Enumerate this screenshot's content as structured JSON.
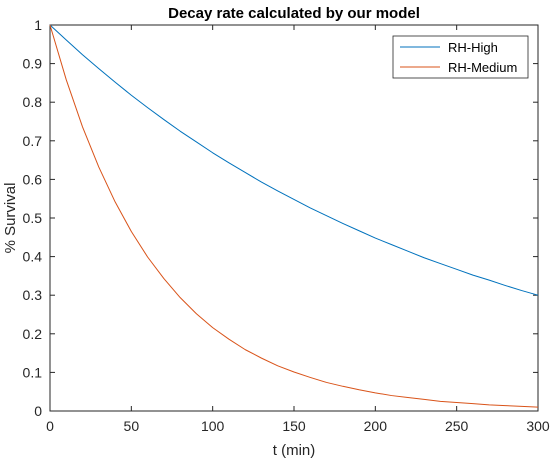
{
  "chart_data": {
    "type": "line",
    "title": "Decay rate calculated by our model",
    "xlabel": "t (min)",
    "ylabel": "% Survival",
    "xlim": [
      0,
      300
    ],
    "ylim": [
      0,
      1
    ],
    "x_ticks": [
      0,
      50,
      100,
      150,
      200,
      250,
      300
    ],
    "y_ticks": [
      0,
      0.1,
      0.2,
      0.3,
      0.4,
      0.5,
      0.6,
      0.7,
      0.8,
      0.9,
      1
    ],
    "grid": false,
    "legend_position": "top-right",
    "x": [
      0,
      10,
      20,
      30,
      40,
      50,
      60,
      70,
      80,
      90,
      100,
      110,
      120,
      130,
      140,
      150,
      160,
      170,
      180,
      190,
      200,
      210,
      220,
      230,
      240,
      250,
      260,
      270,
      280,
      290,
      300
    ],
    "series": [
      {
        "name": "RH-High",
        "color": "#0072BD",
        "values": [
          1.0,
          0.961,
          0.923,
          0.887,
          0.852,
          0.818,
          0.786,
          0.755,
          0.725,
          0.697,
          0.669,
          0.643,
          0.618,
          0.593,
          0.57,
          0.548,
          0.526,
          0.506,
          0.486,
          0.467,
          0.448,
          0.431,
          0.414,
          0.397,
          0.382,
          0.367,
          0.352,
          0.339,
          0.325,
          0.312,
          0.3
        ]
      },
      {
        "name": "RH-Medium",
        "color": "#D95319",
        "values": [
          1.0,
          0.858,
          0.736,
          0.632,
          0.542,
          0.465,
          0.399,
          0.343,
          0.294,
          0.252,
          0.216,
          0.186,
          0.159,
          0.137,
          0.117,
          0.101,
          0.087,
          0.074,
          0.064,
          0.055,
          0.047,
          0.04,
          0.035,
          0.03,
          0.025,
          0.022,
          0.019,
          0.016,
          0.014,
          0.012,
          0.01
        ]
      }
    ]
  }
}
